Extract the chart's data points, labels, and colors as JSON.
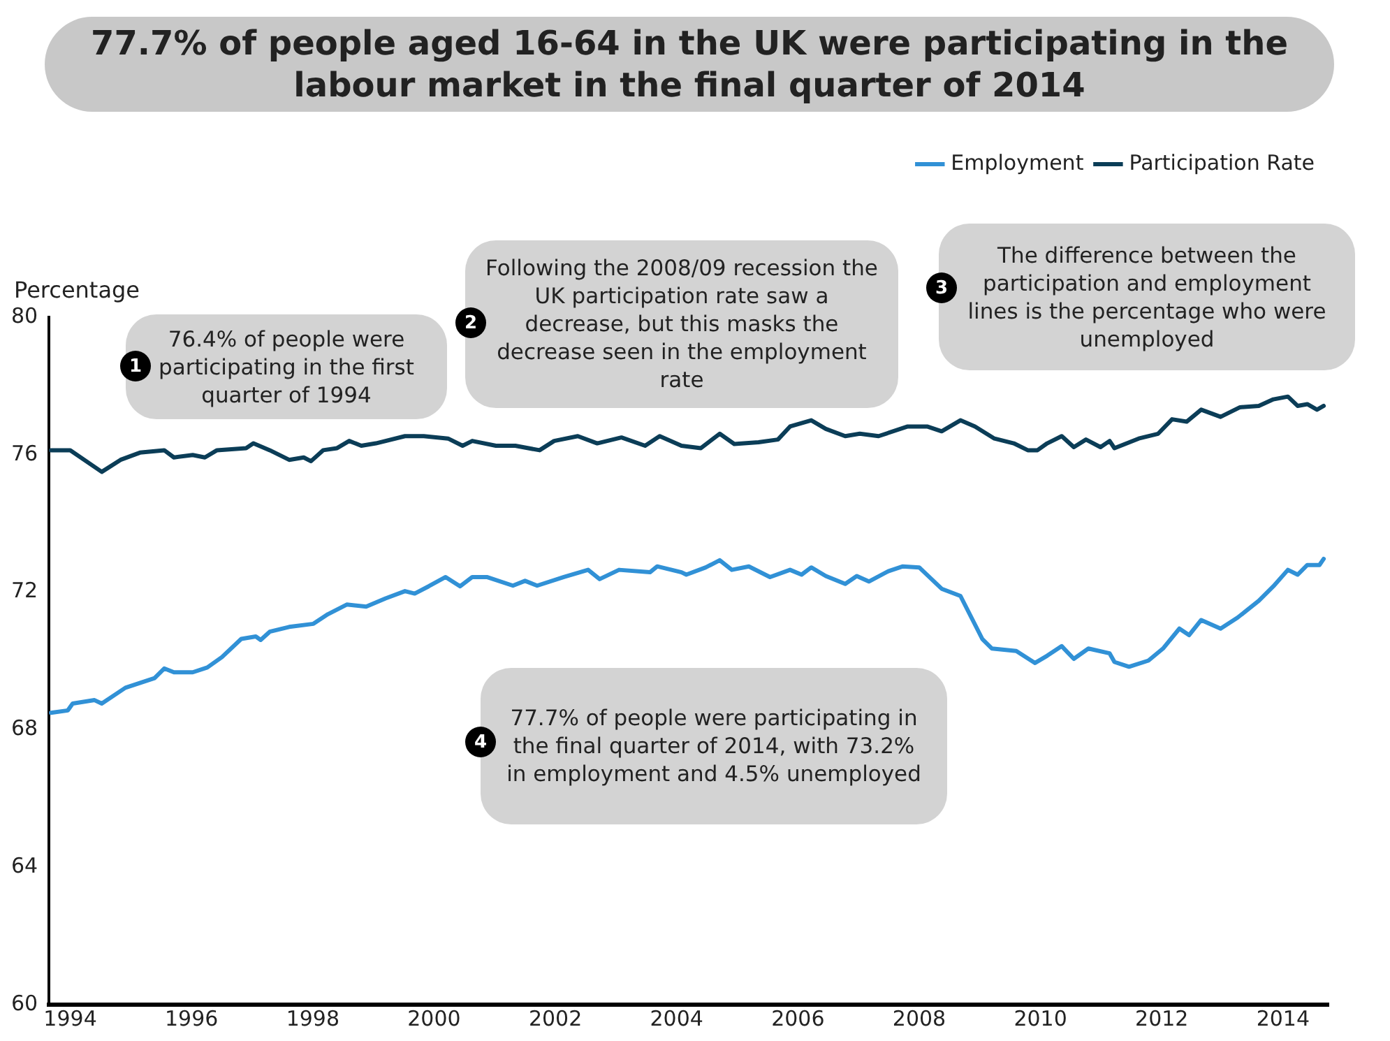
{
  "chart_data": {
    "type": "line",
    "title": "77.7% of people aged 16-64 in the UK were participating in the labour market in the final quarter of 2014",
    "ylabel": "Percentage",
    "xlim": [
      1993.65,
      2014.75
    ],
    "xticks": [
      1994,
      1996,
      1998,
      2000,
      2002,
      2004,
      2006,
      2008,
      2010,
      2012,
      2014
    ],
    "ylim": [
      60,
      80
    ],
    "yticks": [
      60,
      64,
      68,
      72,
      76,
      80
    ],
    "grid": false,
    "legend": "top right",
    "marker": "none",
    "line_style": "solid",
    "series": [
      {
        "name": "Employment",
        "color": "#3191d6",
        "x": [
          1993.68,
          1993.96,
          1994.04,
          1994.4,
          1994.52,
          1994.91,
          1995.39,
          1995.55,
          1995.71,
          1996.02,
          1996.26,
          1996.5,
          1996.82,
          1997.06,
          1997.14,
          1997.29,
          1997.61,
          1998.01,
          1998.25,
          1998.56,
          1998.88,
          1999.2,
          1999.52,
          1999.68,
          1999.91,
          2000.19,
          2000.43,
          2000.63,
          2000.87,
          2001.3,
          2001.5,
          2001.7,
          2002.14,
          2002.54,
          2002.73,
          2003.05,
          2003.56,
          2003.68,
          2004.08,
          2004.16,
          2004.48,
          2004.71,
          2004.91,
          2005.19,
          2005.54,
          2005.87,
          2006.06,
          2006.22,
          2006.46,
          2006.78,
          2006.97,
          2007.17,
          2007.49,
          2007.73,
          2008.0,
          2008.37,
          2008.68,
          2009.04,
          2009.2,
          2009.6,
          2009.91,
          2010.11,
          2010.35,
          2010.55,
          2010.79,
          2011.14,
          2011.22,
          2011.46,
          2011.78,
          2012.02,
          2012.29,
          2012.45,
          2012.65,
          2012.97,
          2013.25,
          2013.6,
          2013.84,
          2014.08,
          2014.24,
          2014.4,
          2014.6,
          2014.67
        ],
        "values": [
          68.49,
          68.56,
          68.76,
          68.86,
          68.76,
          69.22,
          69.5,
          69.78,
          69.67,
          69.67,
          69.81,
          70.11,
          70.64,
          70.71,
          70.61,
          70.85,
          70.99,
          71.08,
          71.36,
          71.64,
          71.58,
          71.82,
          72.03,
          71.96,
          72.17,
          72.44,
          72.17,
          72.44,
          72.44,
          72.19,
          72.33,
          72.19,
          72.44,
          72.65,
          72.38,
          72.65,
          72.58,
          72.75,
          72.58,
          72.51,
          72.72,
          72.93,
          72.65,
          72.75,
          72.44,
          72.65,
          72.51,
          72.72,
          72.47,
          72.24,
          72.47,
          72.31,
          72.61,
          72.75,
          72.72,
          72.1,
          71.89,
          70.64,
          70.36,
          70.29,
          69.94,
          70.15,
          70.43,
          70.06,
          70.36,
          70.22,
          69.97,
          69.83,
          70.01,
          70.36,
          70.94,
          70.75,
          71.19,
          70.94,
          71.26,
          71.75,
          72.17,
          72.65,
          72.51,
          72.79,
          72.79,
          72.97
        ]
      },
      {
        "name": "Participation Rate",
        "color": "#0b3d57",
        "x": [
          1993.68,
          1994.0,
          1994.52,
          1994.83,
          1995.15,
          1995.55,
          1995.71,
          1996.02,
          1996.22,
          1996.42,
          1996.9,
          1997.02,
          1997.29,
          1997.61,
          1997.85,
          1997.97,
          1998.17,
          1998.4,
          1998.6,
          1998.8,
          1999.04,
          1999.52,
          1999.83,
          2000.23,
          2000.47,
          2000.63,
          2001.02,
          2001.34,
          2001.74,
          2001.98,
          2002.37,
          2002.69,
          2003.09,
          2003.48,
          2003.72,
          2004.08,
          2004.4,
          2004.71,
          2004.95,
          2005.35,
          2005.67,
          2005.87,
          2006.22,
          2006.46,
          2006.78,
          2007.02,
          2007.33,
          2007.81,
          2008.13,
          2008.37,
          2008.68,
          2008.92,
          2009.24,
          2009.56,
          2009.79,
          2009.95,
          2010.11,
          2010.35,
          2010.55,
          2010.75,
          2010.99,
          2011.14,
          2011.22,
          2011.62,
          2011.94,
          2012.17,
          2012.41,
          2012.65,
          2012.97,
          2013.29,
          2013.6,
          2013.84,
          2014.08,
          2014.24,
          2014.4,
          2014.56,
          2014.67
        ],
        "values": [
          76.13,
          76.13,
          75.5,
          75.85,
          76.06,
          76.13,
          75.92,
          75.99,
          75.92,
          76.13,
          76.19,
          76.33,
          76.13,
          75.85,
          75.92,
          75.81,
          76.13,
          76.19,
          76.4,
          76.26,
          76.33,
          76.54,
          76.54,
          76.47,
          76.26,
          76.4,
          76.26,
          76.26,
          76.13,
          76.4,
          76.54,
          76.33,
          76.5,
          76.26,
          76.54,
          76.26,
          76.19,
          76.61,
          76.31,
          76.36,
          76.44,
          76.82,
          77.0,
          76.75,
          76.54,
          76.61,
          76.54,
          76.82,
          76.82,
          76.68,
          77.0,
          76.82,
          76.47,
          76.33,
          76.13,
          76.13,
          76.33,
          76.54,
          76.22,
          76.44,
          76.22,
          76.4,
          76.19,
          76.47,
          76.61,
          77.03,
          76.96,
          77.31,
          77.1,
          77.38,
          77.42,
          77.61,
          77.69,
          77.42,
          77.47,
          77.31,
          77.42
        ]
      }
    ],
    "annotations": [
      "1",
      "76.4% of people were participating in the first quarter of 1994",
      "2",
      "Following the 2008/09 recession the UK participation rate saw a decrease, but this masks the decrease seen in the employment rate",
      "3",
      "The difference between the participation and employment lines is the percentage who were unemployed",
      "4",
      "77.7% of people were participating in the final quarter of 2014, with 73.2% in employment and 4.5% unemployed"
    ]
  }
}
